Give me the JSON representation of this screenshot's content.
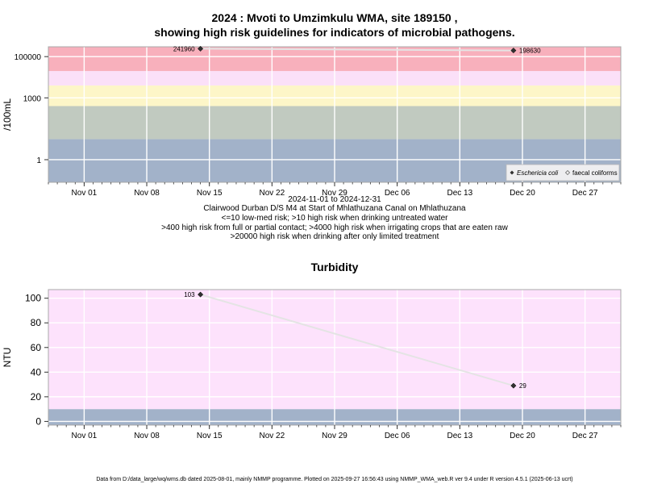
{
  "colors": {
    "band_high_drinking": "#f8b0bc",
    "band_irrigation": "#fbe0f8",
    "band_contact": "#fdf6c8",
    "band_medium": "#c1cac0",
    "band_low": "#a2b2c9",
    "turbidity_bg": "#fde2fc",
    "turbidity_low": "#a2b2c9",
    "line": "#e4e4e4",
    "point": "#303030"
  },
  "chart_data": [
    {
      "type": "line",
      "title": "2024 : Mvoti to Umzimkulu WMA, site 189150 ,",
      "subtitle": "showing high risk guidelines for indicators of microbial pathogens.",
      "ylabel": "/100mL",
      "y_scale": "log",
      "ylim": [
        0.08,
        300000
      ],
      "xlim": [
        "2024-10-28",
        "2024-12-31"
      ],
      "x_ticks": [
        "2024-11-01",
        "2024-11-08",
        "2024-11-15",
        "2024-11-22",
        "2024-11-29",
        "2024-12-06",
        "2024-12-13",
        "2024-12-20",
        "2024-12-27"
      ],
      "x_tick_labels": [
        "Nov 01",
        "Nov 08",
        "Nov 15",
        "Nov 22",
        "Nov 29",
        "Dec 06",
        "Dec 13",
        "Dec 20",
        "Dec 27"
      ],
      "y_ticks": [
        1,
        1000,
        100000
      ],
      "y_tick_labels": [
        "1",
        "1000",
        "100000"
      ],
      "bands": [
        {
          "from": 0.08,
          "to": 10,
          "color": "#a2b2c9"
        },
        {
          "from": 10,
          "to": 400,
          "color": "#c1cac0"
        },
        {
          "from": 400,
          "to": 4000,
          "color": "#fdf6c8"
        },
        {
          "from": 4000,
          "to": 20000,
          "color": "#fbe0f8"
        },
        {
          "from": 20000,
          "to": 300000,
          "color": "#f8b0bc"
        }
      ],
      "series": [
        {
          "name": "Eschericia coli",
          "marker": "filled-diamond",
          "x": [
            "2024-11-14",
            "2024-12-19"
          ],
          "y": [
            241960,
            198630
          ],
          "labels": [
            "241960",
            "198630"
          ]
        }
      ],
      "legend": {
        "position": "bottom-right",
        "entries": [
          "Eschericia coli",
          "faecal coliforms"
        ]
      },
      "annotations": [
        "2024-11-01 to 2024-12-31",
        "Clairwood Durban D/S M4 at Start of Mhlathuzana Canal on Mhlathuzana",
        "<=10 low-med risk; >10 high risk when drinking untreated water",
        ">400 high risk from full or partial contact; >4000 high risk when irrigating crops that are eaten raw",
        ">20000 high risk when drinking after only limited treatment"
      ],
      "grid": true
    },
    {
      "type": "line",
      "title": "Turbidity",
      "ylabel": "NTU",
      "ylim": [
        -3,
        107
      ],
      "xlim": [
        "2024-10-28",
        "2024-12-31"
      ],
      "x_ticks": [
        "2024-11-01",
        "2024-11-08",
        "2024-11-15",
        "2024-11-22",
        "2024-11-29",
        "2024-12-06",
        "2024-12-13",
        "2024-12-20",
        "2024-12-27"
      ],
      "x_tick_labels": [
        "Nov 01",
        "Nov 08",
        "Nov 15",
        "Nov 22",
        "Nov 29",
        "Dec 06",
        "Dec 13",
        "Dec 20",
        "Dec 27"
      ],
      "y_ticks": [
        0,
        20,
        40,
        60,
        80,
        100
      ],
      "y_tick_labels": [
        "0",
        "20",
        "40",
        "60",
        "80",
        "100"
      ],
      "bands": [
        {
          "from": -3,
          "to": 10,
          "color": "#a2b2c9"
        },
        {
          "from": 10,
          "to": 107,
          "color": "#fde2fc"
        }
      ],
      "series": [
        {
          "x": [
            "2024-11-14",
            "2024-12-19"
          ],
          "y": [
            103,
            29
          ],
          "labels": [
            "103",
            "29"
          ]
        }
      ],
      "grid": true
    }
  ],
  "footer": "Data from D:/data_large/wq/wms.db dated 2025-08-01, mainly NMMP programme. Plotted on 2025-09-27 16:56:43 using NMMP_WMA_web.R ver 9.4 under R version 4.5.1 (2025-06-13 ucrt)"
}
